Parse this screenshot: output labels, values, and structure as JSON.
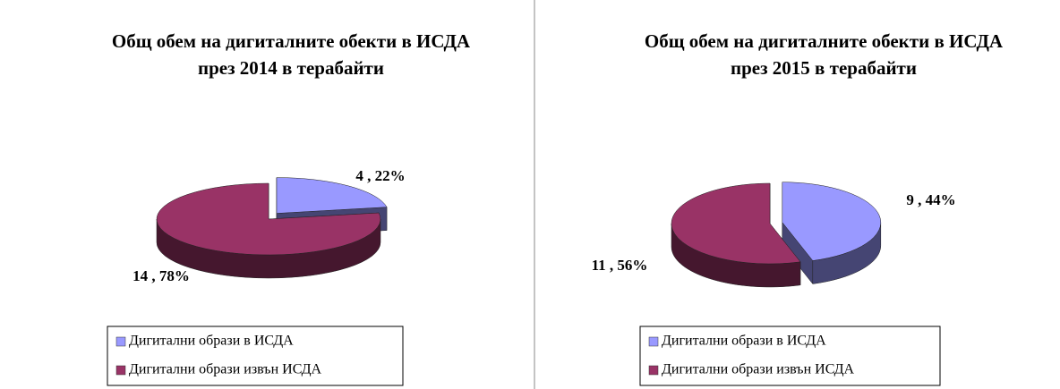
{
  "chart_data": [
    {
      "type": "pie",
      "title": [
        "Общ обем на дигиталните обекти в ИСДА",
        "през 2014 в терабайти"
      ],
      "categories": [
        "Дигитални образи в ИСДА",
        "Дигитални образи извън ИСДА"
      ],
      "values": [
        4,
        14
      ],
      "value_labels": [
        "4 , 22%",
        "14 , 78%"
      ],
      "colors": [
        "#9999ff",
        "#993366"
      ]
    },
    {
      "type": "pie",
      "title": [
        "Общ обем на дигиталните обекти в ИСДА",
        "през 2015 в терабайти"
      ],
      "categories": [
        "Дигитални образи в ИСДА",
        "Дигитални образи извън ИСДА"
      ],
      "values": [
        9,
        11
      ],
      "value_labels": [
        "9 , 44%",
        "11 , 56%"
      ],
      "colors": [
        "#9999ff",
        "#993366"
      ]
    }
  ]
}
